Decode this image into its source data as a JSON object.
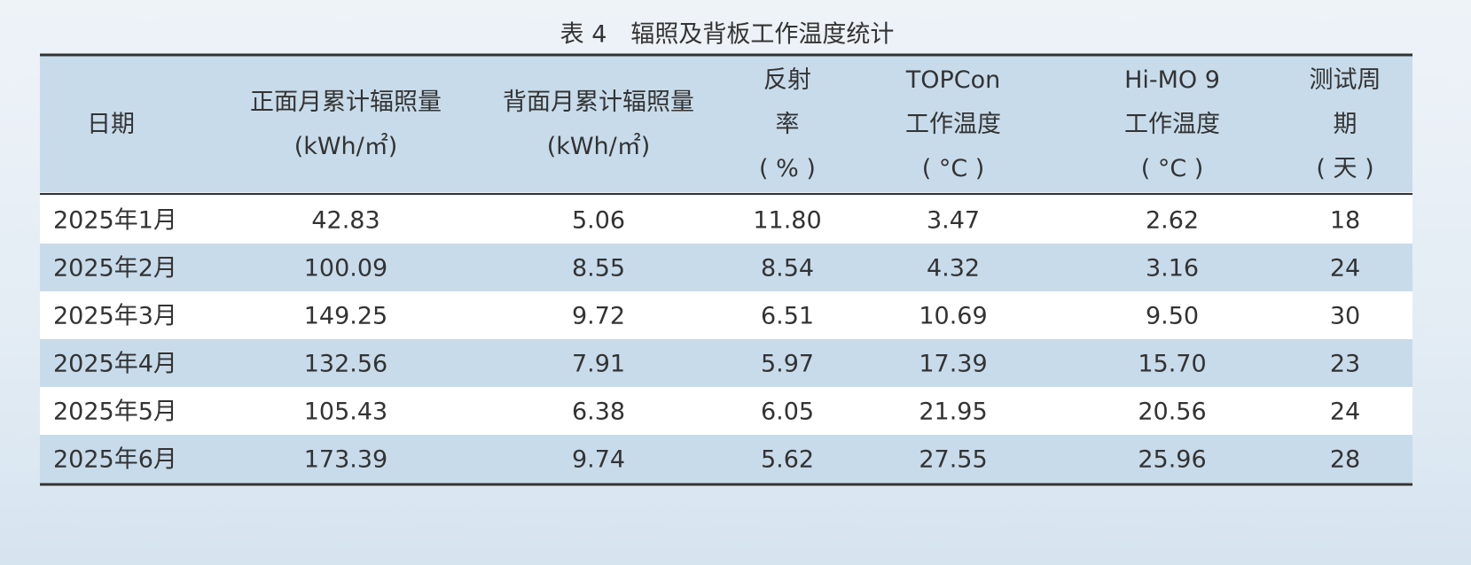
{
  "title": "表 4　辐照及背板工作温度统计",
  "table": {
    "header": [
      [
        "日期"
      ],
      [
        "正面月累计辐照量",
        "(kWh/㎡)"
      ],
      [
        "背面月累计辐照量",
        "(kWh/㎡)"
      ],
      [
        "反射",
        "率",
        "( % )"
      ],
      [
        "TOPCon",
        "工作温度",
        "( °C )"
      ],
      [
        "Hi-MO 9",
        "工作温度",
        "( °C )"
      ],
      [
        "测试周",
        "期",
        "( 天 )"
      ]
    ],
    "rows": [
      [
        "2025年1月",
        "42.83",
        "5.06",
        "11.80",
        "3.47",
        "2.62",
        "18"
      ],
      [
        "2025年2月",
        "100.09",
        "8.55",
        "8.54",
        "4.32",
        "3.16",
        "24"
      ],
      [
        "2025年3月",
        "149.25",
        "9.72",
        "6.51",
        "10.69",
        "9.50",
        "30"
      ],
      [
        "2025年4月",
        "132.56",
        "7.91",
        "5.97",
        "17.39",
        "15.70",
        "23"
      ],
      [
        "2025年5月",
        "105.43",
        "6.38",
        "6.05",
        "21.95",
        "20.56",
        "24"
      ],
      [
        "2025年6月",
        "173.39",
        "9.74",
        "5.62",
        "27.55",
        "25.96",
        "28"
      ]
    ]
  }
}
